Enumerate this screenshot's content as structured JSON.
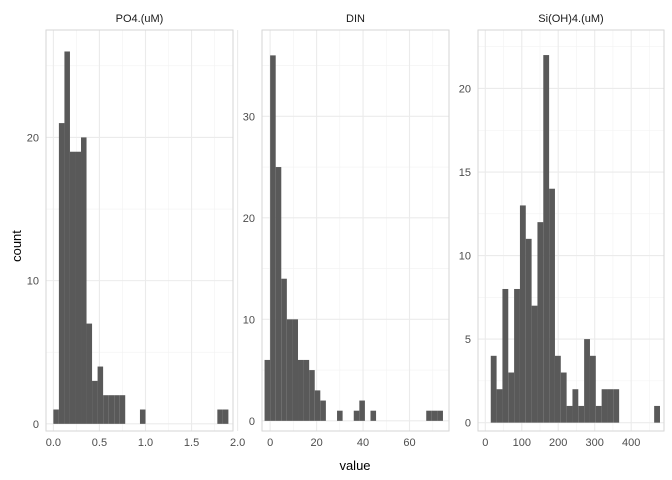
{
  "chart_data": {
    "type": "bar",
    "xlabel": "value",
    "ylabel": "count",
    "bar_color": "#595959",
    "grid": true,
    "panels": [
      {
        "title": "PO4.(uM)",
        "xlim": [
          -0.08,
          1.95
        ],
        "ylim": [
          -0.5,
          27.5
        ],
        "xticks": [
          0.0,
          0.5,
          1.0,
          1.5,
          2.0
        ],
        "xtick_labels": [
          "0.0",
          "0.5",
          "1.0",
          "1.5",
          "2.0"
        ],
        "yticks": [
          0,
          10,
          20
        ],
        "yminor": [
          5,
          15,
          25
        ],
        "xminor": [
          0.25,
          0.75,
          1.25,
          1.75
        ],
        "bins": [
          {
            "x0": 0.0,
            "x1": 0.06,
            "count": 1
          },
          {
            "x0": 0.06,
            "x1": 0.12,
            "count": 21
          },
          {
            "x0": 0.12,
            "x1": 0.18,
            "count": 26
          },
          {
            "x0": 0.18,
            "x1": 0.24,
            "count": 19
          },
          {
            "x0": 0.24,
            "x1": 0.3,
            "count": 19
          },
          {
            "x0": 0.3,
            "x1": 0.36,
            "count": 20
          },
          {
            "x0": 0.36,
            "x1": 0.42,
            "count": 7
          },
          {
            "x0": 0.42,
            "x1": 0.48,
            "count": 3
          },
          {
            "x0": 0.48,
            "x1": 0.54,
            "count": 4
          },
          {
            "x0": 0.54,
            "x1": 0.6,
            "count": 2
          },
          {
            "x0": 0.6,
            "x1": 0.66,
            "count": 2
          },
          {
            "x0": 0.66,
            "x1": 0.72,
            "count": 2
          },
          {
            "x0": 0.72,
            "x1": 0.78,
            "count": 2
          },
          {
            "x0": 0.94,
            "x1": 1.0,
            "count": 1
          },
          {
            "x0": 1.78,
            "x1": 1.84,
            "count": 1
          },
          {
            "x0": 1.84,
            "x1": 1.9,
            "count": 1
          }
        ]
      },
      {
        "title": "DIN",
        "xlim": [
          -3.5,
          77
        ],
        "ylim": [
          -1.0,
          38.5
        ],
        "xticks": [
          0,
          20,
          40,
          60
        ],
        "xtick_labels": [
          "0",
          "20",
          "40",
          "60"
        ],
        "yticks": [
          0,
          10,
          20,
          30
        ],
        "yminor": [
          5,
          15,
          25,
          35
        ],
        "xminor": [
          10,
          30,
          50,
          70
        ],
        "bins": [
          {
            "x0": -2.4,
            "x1": 0.0,
            "count": 6
          },
          {
            "x0": 0.0,
            "x1": 2.4,
            "count": 36
          },
          {
            "x0": 2.4,
            "x1": 4.8,
            "count": 25
          },
          {
            "x0": 4.8,
            "x1": 7.2,
            "count": 14
          },
          {
            "x0": 7.2,
            "x1": 9.6,
            "count": 10
          },
          {
            "x0": 9.6,
            "x1": 12.0,
            "count": 10
          },
          {
            "x0": 12.0,
            "x1": 14.4,
            "count": 6
          },
          {
            "x0": 14.4,
            "x1": 16.8,
            "count": 6
          },
          {
            "x0": 16.8,
            "x1": 19.2,
            "count": 5
          },
          {
            "x0": 19.2,
            "x1": 21.6,
            "count": 3
          },
          {
            "x0": 21.6,
            "x1": 24.0,
            "count": 2
          },
          {
            "x0": 28.8,
            "x1": 31.2,
            "count": 1
          },
          {
            "x0": 36.0,
            "x1": 38.4,
            "count": 1
          },
          {
            "x0": 38.4,
            "x1": 40.8,
            "count": 2
          },
          {
            "x0": 43.2,
            "x1": 45.6,
            "count": 1
          },
          {
            "x0": 67.2,
            "x1": 69.6,
            "count": 1
          },
          {
            "x0": 69.6,
            "x1": 72.0,
            "count": 1
          },
          {
            "x0": 72.0,
            "x1": 74.4,
            "count": 1
          }
        ]
      },
      {
        "title": "Si(OH)4.(uM)",
        "xlim": [
          -20,
          490
        ],
        "ylim": [
          -0.5,
          23.5
        ],
        "xticks": [
          0,
          100,
          200,
          300,
          400
        ],
        "xtick_labels": [
          "0",
          "100",
          "200",
          "300",
          "400"
        ],
        "yticks": [
          0,
          5,
          10,
          15,
          20
        ],
        "yminor": [
          2.5,
          7.5,
          12.5,
          17.5,
          22.5
        ],
        "xminor": [
          50,
          150,
          250,
          350,
          450
        ],
        "bins": [
          {
            "x0": 15,
            "x1": 31,
            "count": 4
          },
          {
            "x0": 31,
            "x1": 47,
            "count": 2
          },
          {
            "x0": 47,
            "x1": 63,
            "count": 8
          },
          {
            "x0": 63,
            "x1": 79,
            "count": 3
          },
          {
            "x0": 79,
            "x1": 95,
            "count": 8
          },
          {
            "x0": 95,
            "x1": 111,
            "count": 13
          },
          {
            "x0": 111,
            "x1": 127,
            "count": 11
          },
          {
            "x0": 127,
            "x1": 143,
            "count": 7
          },
          {
            "x0": 143,
            "x1": 159,
            "count": 12
          },
          {
            "x0": 159,
            "x1": 175,
            "count": 22
          },
          {
            "x0": 175,
            "x1": 191,
            "count": 14
          },
          {
            "x0": 191,
            "x1": 207,
            "count": 4
          },
          {
            "x0": 207,
            "x1": 223,
            "count": 3
          },
          {
            "x0": 223,
            "x1": 239,
            "count": 1
          },
          {
            "x0": 239,
            "x1": 255,
            "count": 2
          },
          {
            "x0": 255,
            "x1": 271,
            "count": 1
          },
          {
            "x0": 271,
            "x1": 287,
            "count": 5
          },
          {
            "x0": 287,
            "x1": 303,
            "count": 4
          },
          {
            "x0": 303,
            "x1": 319,
            "count": 1
          },
          {
            "x0": 319,
            "x1": 335,
            "count": 2
          },
          {
            "x0": 335,
            "x1": 351,
            "count": 2
          },
          {
            "x0": 351,
            "x1": 367,
            "count": 2
          },
          {
            "x0": 463,
            "x1": 479,
            "count": 1
          }
        ]
      }
    ]
  }
}
